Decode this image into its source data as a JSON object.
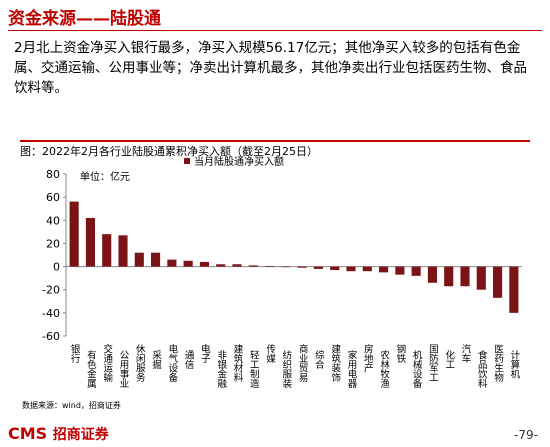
{
  "header": {
    "title": "资金来源——陆股通"
  },
  "paragraph": "2月北上资金净买入银行最多，净买入规模56.17亿元；其他净买入较多的包括有色金属、交通运输、公用事业等；净卖出计算机最多，其他净卖出行业包括医药生物、食品饮料等。",
  "chart_data": {
    "type": "bar",
    "title": "图：2022年2月各行业陆股通累积净买入额（截至2月25日）",
    "unit": "单位：亿元",
    "categories": [
      "银行",
      "有色金属",
      "交通运输",
      "公用事业",
      "休闲服务",
      "采掘",
      "电气设备",
      "通信",
      "电子",
      "非银金融",
      "建筑材料",
      "轻工制造",
      "传媒",
      "纺织服装",
      "商业贸易",
      "综合",
      "建筑装饰",
      "家用电器",
      "房地产",
      "农林牧渔",
      "钢铁",
      "机械设备",
      "国防军工",
      "化工",
      "汽车",
      "食品饮料",
      "医药生物",
      "计算机"
    ],
    "series": [
      {
        "name": "当月陆股通净买入额",
        "color": "#7b1416",
        "values": [
          56.17,
          42,
          28,
          27,
          12,
          12,
          6,
          5,
          4,
          2,
          2,
          1,
          0.5,
          -0.5,
          -1,
          -2,
          -3,
          -4,
          -4,
          -5,
          -7,
          -8,
          -14,
          -17,
          -17,
          -20,
          -27,
          -40
        ]
      }
    ],
    "ylim": [
      -60,
      80
    ],
    "yticks": [
      -60,
      -40,
      -20,
      0,
      20,
      40,
      60,
      80
    ]
  },
  "source": "数据来源：wind，招商证券",
  "footer": {
    "logo": "CMS",
    "logo_name": "招商证券",
    "page": "-79-"
  }
}
